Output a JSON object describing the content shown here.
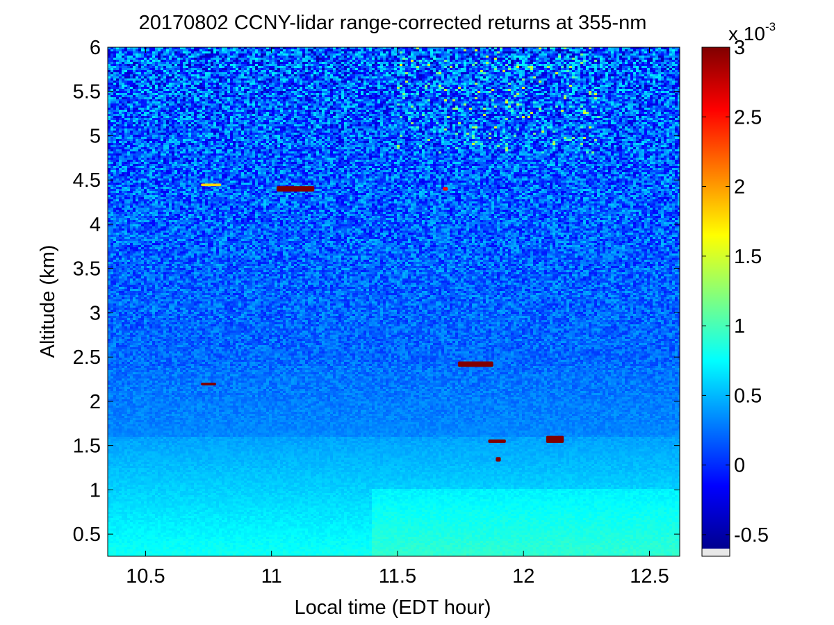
{
  "chart_data": {
    "type": "heatmap",
    "title": "20170802 CCNY-lidar range-corrected returns at 355-nm",
    "xlabel": "Local time (EDT hour)",
    "ylabel": "Altitude (km)",
    "xlim": [
      10.35,
      12.62
    ],
    "ylim": [
      0.25,
      6.0
    ],
    "x_ticks": [
      "10.5",
      "11",
      "11.5",
      "12",
      "12.5"
    ],
    "x_tick_values": [
      10.5,
      11,
      11.5,
      12,
      12.5
    ],
    "y_ticks": [
      "0.5",
      "1",
      "1.5",
      "2",
      "2.5",
      "3",
      "3.5",
      "4",
      "4.5",
      "5",
      "5.5",
      "6"
    ],
    "y_tick_values": [
      0.5,
      1,
      1.5,
      2,
      2.5,
      3,
      3.5,
      4,
      4.5,
      5,
      5.5,
      6
    ],
    "colorbar": {
      "colormap": "jet",
      "range": [
        -0.0006,
        0.003
      ],
      "ticks": [
        "-0.5",
        "0",
        "0.5",
        "1",
        "1.5",
        "2",
        "2.5",
        "3"
      ],
      "tick_values": [
        -0.0005,
        0,
        0.0005,
        0.001,
        0.0015,
        0.002,
        0.0025,
        0.003
      ],
      "exponent_label_base": "x 10",
      "exponent_label_power": "-3"
    },
    "features": [
      {
        "id": "cloud-1",
        "time": [
          11.02,
          11.17
        ],
        "altitude": [
          4.37,
          4.43
        ],
        "value": 0.003
      },
      {
        "id": "cloud-2",
        "time": [
          10.72,
          10.78
        ],
        "altitude": [
          2.18,
          2.21
        ],
        "value": 0.003
      },
      {
        "id": "cloud-3",
        "time": [
          11.74,
          11.88
        ],
        "altitude": [
          2.39,
          2.45
        ],
        "value": 0.003
      },
      {
        "id": "cloud-4",
        "time": [
          11.86,
          11.93
        ],
        "altitude": [
          1.53,
          1.57
        ],
        "value": 0.003
      },
      {
        "id": "cloud-5",
        "time": [
          12.09,
          12.16
        ],
        "altitude": [
          1.53,
          1.61
        ],
        "value": 0.003
      },
      {
        "id": "cloud-6",
        "time": [
          11.89,
          11.91
        ],
        "altitude": [
          1.32,
          1.37
        ],
        "value": 0.003
      },
      {
        "id": "cloud-7",
        "time": [
          10.72,
          10.8
        ],
        "altitude": [
          4.43,
          4.46
        ],
        "value": 0.0018
      },
      {
        "id": "cloud-8",
        "time": [
          11.68,
          11.7
        ],
        "altitude": [
          4.38,
          4.42
        ],
        "value": 0.0025
      }
    ],
    "grid": false,
    "legend": "colorbar-right"
  }
}
